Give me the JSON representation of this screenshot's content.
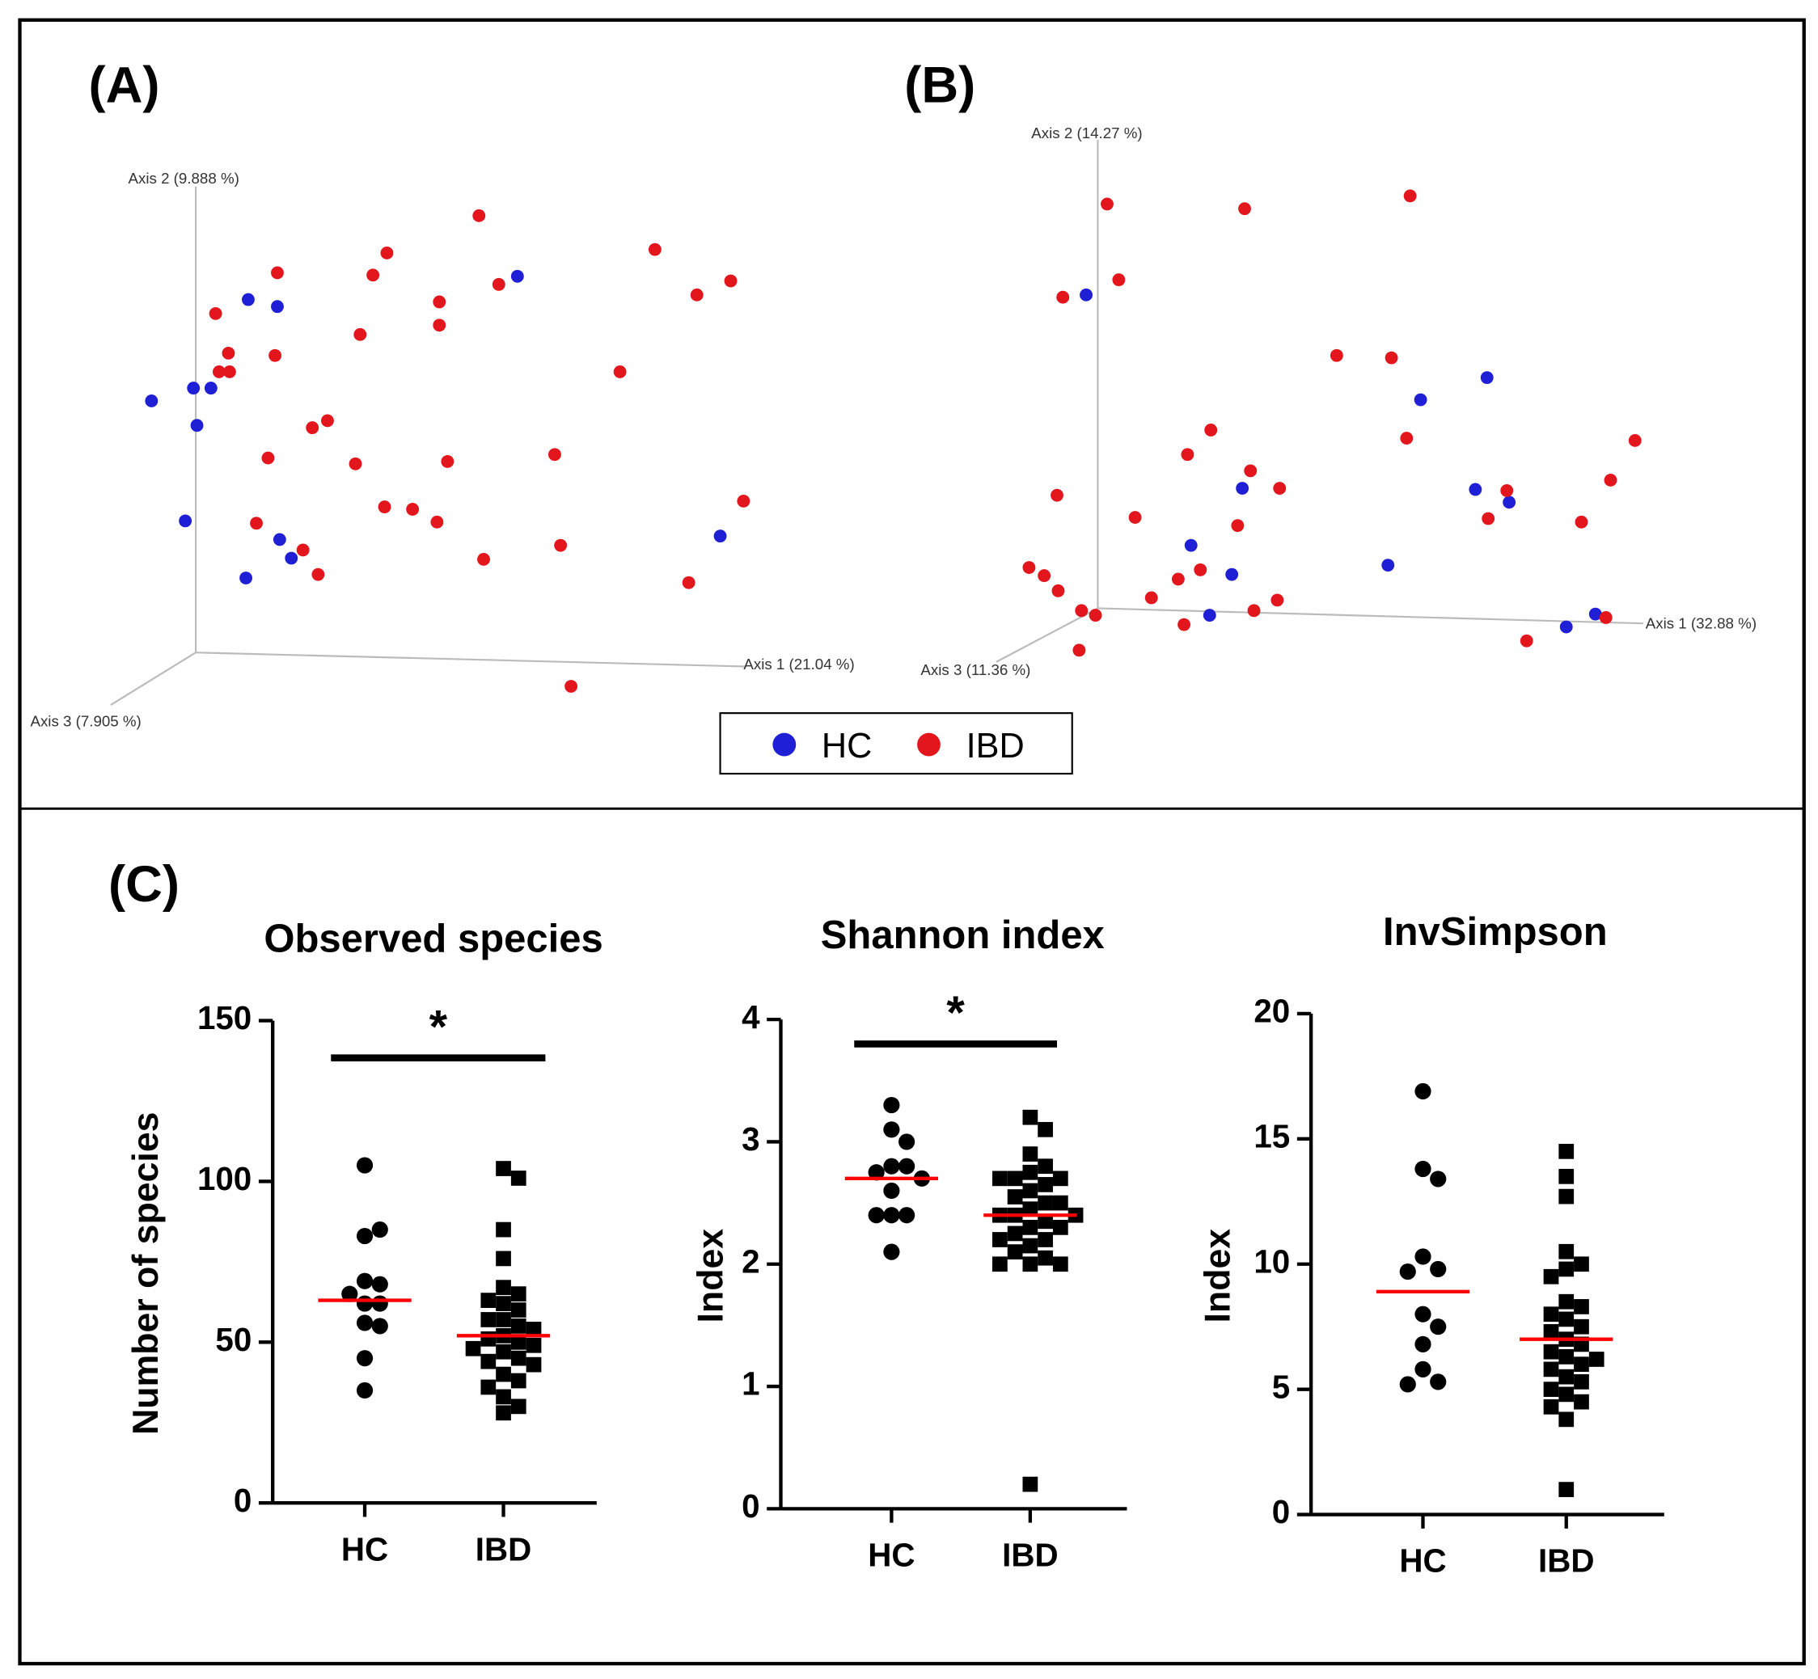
{
  "panels": [
    "(A)",
    "(B)",
    "(C)"
  ],
  "chart_data": [
    {
      "type": "scatter3d",
      "xlabel": "Axis 1 (21.04 %)",
      "ylabel": "Axis 2 (9.888 %)",
      "zlabel": "Axis 3 (7.905 %)",
      "xlim": [
        0,
        560
      ],
      "ylim": [
        0,
        450
      ],
      "series": [
        {
          "name": "HC",
          "color": "#1f1fd6",
          "x": [
            30,
            66,
            81,
            69,
            113,
            138,
            344,
            59,
            140,
            150,
            111,
            518
          ],
          "values": [
            256,
            267,
            267,
            235,
            343,
            337,
            363,
            153,
            137,
            121,
            104,
            140
          ]
        },
        {
          "name": "IBD",
          "color": "#e3161d",
          "x": [
            311,
            232,
            220,
            138,
            85,
            96,
            88,
            97,
            136,
            209,
            277,
            277,
            328,
            462,
            498,
            527,
            432,
            168,
            181,
            130,
            205,
            284,
            376,
            230,
            254,
            275,
            120,
            160,
            173,
            315,
            381,
            538,
            491,
            390
          ],
          "values": [
            415,
            383,
            364,
            366,
            331,
            297,
            281,
            281,
            295,
            313,
            341,
            321,
            356,
            386,
            347,
            359,
            281,
            233,
            239,
            207,
            202,
            204,
            210,
            165,
            163,
            152,
            151,
            128,
            107,
            120,
            132,
            170,
            100,
            11
          ]
        }
      ]
    },
    {
      "type": "scatter3d",
      "xlabel": "Axis 1 (32.88 %)",
      "ylabel": "Axis 2 (14.27 %)",
      "zlabel": "Axis 3 (11.36 %)",
      "xlim": [
        0,
        560
      ],
      "ylim": [
        0,
        450
      ],
      "series": [
        {
          "name": "HC",
          "color": "#1f1fd6",
          "x": [
            72,
            359,
            416,
            206,
            162,
            197,
            178,
            331,
            406,
            435,
            509,
            484
          ],
          "values": [
            347,
            257,
            276,
            181,
            132,
            107,
            72,
            115,
            180,
            169,
            73,
            62
          ]
        },
        {
          "name": "IBD",
          "color": "#e3161d",
          "x": [
            90,
            208,
            350,
            100,
            52,
            287,
            334,
            347,
            179,
            159,
            213,
            238,
            47,
            114,
            202,
            170,
            151,
            128,
            23,
            36,
            48,
            68,
            80,
            156,
            216,
            236,
            66,
            433,
            417,
            497,
            522,
            543,
            518,
            450
          ],
          "values": [
            425,
            421,
            432,
            360,
            345,
            295,
            293,
            224,
            231,
            210,
            196,
            181,
            175,
            156,
            149,
            111,
            103,
            87,
            113,
            106,
            93,
            76,
            72,
            64,
            76,
            85,
            42,
            179,
            155,
            152,
            188,
            222,
            70,
            50
          ]
        }
      ]
    },
    {
      "type": "dotplot",
      "title": "Observed species",
      "ylabel": "Number of species",
      "categories": [
        "HC",
        "IBD"
      ],
      "ylim": [
        0,
        150
      ],
      "yticks": [
        0,
        50,
        100,
        150
      ],
      "significance": "*",
      "mean_color": "#ff0000",
      "values": [
        [
          105,
          83,
          85,
          69,
          68,
          65,
          62,
          62,
          56,
          55,
          45,
          35
        ],
        [
          104,
          101,
          85,
          76,
          67,
          65,
          63,
          62,
          60,
          57,
          57,
          55,
          54,
          52,
          51,
          50,
          49,
          48,
          47,
          45,
          44,
          43,
          40,
          38,
          36,
          33,
          30,
          28
        ]
      ],
      "means": [
        63,
        52
      ]
    },
    {
      "type": "dotplot",
      "title": "Shannon index",
      "ylabel": "Index",
      "categories": [
        "HC",
        "IBD"
      ],
      "ylim": [
        0,
        4
      ],
      "yticks": [
        0,
        1,
        2,
        3,
        4
      ],
      "significance": "*",
      "mean_color": "#ff0000",
      "values": [
        [
          3.3,
          3.1,
          3.0,
          2.8,
          2.8,
          2.75,
          2.7,
          2.6,
          2.4,
          2.4,
          2.4,
          2.1
        ],
        [
          3.2,
          3.1,
          2.9,
          2.8,
          2.75,
          2.7,
          2.7,
          2.7,
          2.65,
          2.6,
          2.55,
          2.5,
          2.5,
          2.45,
          2.4,
          2.4,
          2.4,
          2.35,
          2.3,
          2.3,
          2.25,
          2.2,
          2.2,
          2.15,
          2.1,
          2.05,
          2.0,
          2.0,
          2.0,
          0.2
        ]
      ],
      "means": [
        2.7,
        2.4
      ]
    },
    {
      "type": "dotplot",
      "title": "InvSimpson",
      "ylabel": "Index",
      "categories": [
        "HC",
        "IBD"
      ],
      "ylim": [
        0,
        20
      ],
      "yticks": [
        0,
        5,
        10,
        15,
        20
      ],
      "mean_color": "#ff0000",
      "values": [
        [
          16.9,
          13.8,
          13.4,
          10.3,
          9.8,
          9.7,
          8.0,
          7.5,
          6.8,
          5.8,
          5.3,
          5.2
        ],
        [
          14.5,
          13.5,
          12.7,
          10.5,
          10.0,
          9.8,
          9.5,
          8.5,
          8.3,
          8.0,
          7.8,
          7.5,
          7.3,
          7.0,
          6.8,
          6.5,
          6.3,
          6.2,
          6.0,
          5.8,
          5.5,
          5.3,
          5.0,
          4.8,
          4.5,
          4.3,
          3.8,
          1.0
        ]
      ],
      "means": [
        8.9,
        7.0
      ]
    }
  ]
}
